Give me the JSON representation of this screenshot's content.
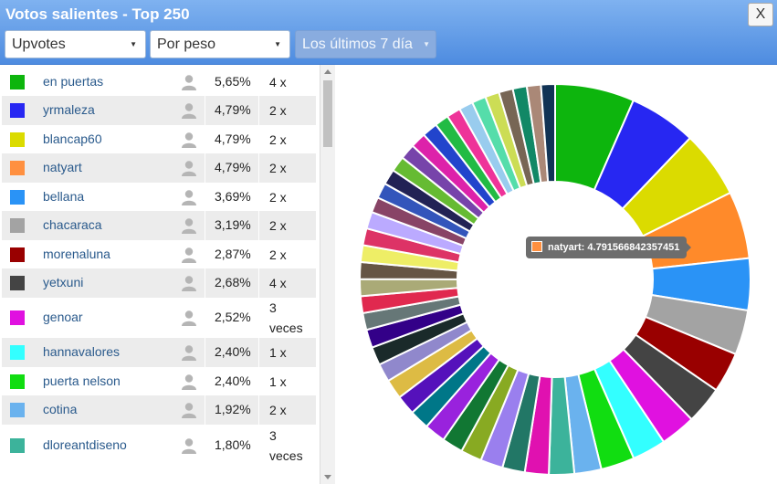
{
  "window": {
    "title": "Votos salientes - Top 250",
    "close_label": "X"
  },
  "filters": {
    "metric": "Upvotes",
    "sort": "Por peso",
    "period": "Los últimos 7 día",
    "period_disabled": true
  },
  "list": {
    "rows": [
      {
        "name": "en puertas",
        "percent": "5,65%",
        "times": "4 x",
        "color": "#0db50d"
      },
      {
        "name": "yrmaleza",
        "percent": "4,79%",
        "times": "2 x",
        "color": "#2727f2"
      },
      {
        "name": "blancap60",
        "percent": "4,79%",
        "times": "2 x",
        "color": "#dbdb00"
      },
      {
        "name": "natyart",
        "percent": "4,79%",
        "times": "2 x",
        "color": "#ff9040"
      },
      {
        "name": "bellana",
        "percent": "3,69%",
        "times": "2 x",
        "color": "#2a93f6"
      },
      {
        "name": "chacaraca",
        "percent": "3,19%",
        "times": "2 x",
        "color": "#a3a3a3"
      },
      {
        "name": "morenaluna",
        "percent": "2,87%",
        "times": "2 x",
        "color": "#990000"
      },
      {
        "name": "yetxuni",
        "percent": "2,68%",
        "times": "4 x",
        "color": "#444444"
      },
      {
        "name": "genoar",
        "percent": "2,52%",
        "times": "3 veces",
        "color": "#e011e0"
      },
      {
        "name": "hannavalores",
        "percent": "2,40%",
        "times": "1 x",
        "color": "#33ffff"
      },
      {
        "name": "puerta nelson",
        "percent": "2,40%",
        "times": "1 x",
        "color": "#11dd11"
      },
      {
        "name": "cotina",
        "percent": "1,92%",
        "times": "2 x",
        "color": "#6ab2ee"
      },
      {
        "name": "dloreantdiseno",
        "percent": "1,80%",
        "times": "3 veces",
        "color": "#3cb39b"
      }
    ]
  },
  "tooltip": {
    "label": "natyart: 4.791566842357451",
    "color": "#ff9040"
  },
  "chart_data": {
    "type": "pie",
    "donut": true,
    "slices": [
      {
        "label": "en puertas",
        "value": 5.65,
        "color": "#0db50d"
      },
      {
        "label": "yrmaleza",
        "value": 4.79,
        "color": "#2727f2"
      },
      {
        "label": "blancap60",
        "value": 4.79,
        "color": "#dbdb00"
      },
      {
        "label": "natyart",
        "value": 4.79,
        "color": "#ff8a2a"
      },
      {
        "label": "bellana",
        "value": 3.69,
        "color": "#2a93f6"
      },
      {
        "label": "chacaraca",
        "value": 3.19,
        "color": "#a3a3a3"
      },
      {
        "label": "morenaluna",
        "value": 2.87,
        "color": "#990000"
      },
      {
        "label": "yetxuni",
        "value": 2.68,
        "color": "#444444"
      },
      {
        "label": "genoar",
        "value": 2.52,
        "color": "#e011e0"
      },
      {
        "label": "hannavalores",
        "value": 2.4,
        "color": "#33ffff"
      },
      {
        "label": "puerta nelson",
        "value": 2.4,
        "color": "#11dd11"
      },
      {
        "label": "cotina",
        "value": 1.92,
        "color": "#6ab2ee"
      },
      {
        "label": "dloreantdiseno",
        "value": 1.8,
        "color": "#3cb39b"
      },
      {
        "value": 1.7,
        "color": "#e011b0"
      },
      {
        "value": 1.6,
        "color": "#227766"
      },
      {
        "value": 1.6,
        "color": "#9a7fee"
      },
      {
        "value": 1.5,
        "color": "#88aa22"
      },
      {
        "value": 1.5,
        "color": "#117733"
      },
      {
        "value": 1.5,
        "color": "#9922dd"
      },
      {
        "value": 1.4,
        "color": "#007788"
      },
      {
        "value": 1.4,
        "color": "#5511bb"
      },
      {
        "value": 1.4,
        "color": "#ddbb44"
      },
      {
        "value": 1.3,
        "color": "#9088cc"
      },
      {
        "value": 1.3,
        "color": "#1a2a2a"
      },
      {
        "value": 1.3,
        "color": "#330088"
      },
      {
        "value": 1.2,
        "color": "#667777"
      },
      {
        "value": 1.2,
        "color": "#e0294f"
      },
      {
        "value": 1.2,
        "color": "#aaaa77"
      },
      {
        "value": 1.2,
        "color": "#665544"
      },
      {
        "value": 1.2,
        "color": "#eeee66"
      },
      {
        "value": 1.2,
        "color": "#dd3366"
      },
      {
        "value": 1.2,
        "color": "#bbaaff"
      },
      {
        "value": 1.1,
        "color": "#884466"
      },
      {
        "value": 1.1,
        "color": "#3355bb"
      },
      {
        "value": 1.1,
        "color": "#222255"
      },
      {
        "value": 1.1,
        "color": "#66bb33"
      },
      {
        "value": 1.1,
        "color": "#7744aa"
      },
      {
        "value": 1.1,
        "color": "#dd22aa"
      },
      {
        "value": 1.1,
        "color": "#2244cc"
      },
      {
        "value": 1.0,
        "color": "#22bb44"
      },
      {
        "value": 1.0,
        "color": "#ee3399"
      },
      {
        "value": 1.0,
        "color": "#99ccee"
      },
      {
        "value": 1.0,
        "color": "#55ddaa"
      },
      {
        "value": 1.0,
        "color": "#ccdd55"
      },
      {
        "value": 1.0,
        "color": "#776655"
      },
      {
        "value": 1.0,
        "color": "#118866"
      },
      {
        "value": 1.0,
        "color": "#aa8877"
      },
      {
        "value": 1.0,
        "color": "#113355"
      }
    ]
  }
}
